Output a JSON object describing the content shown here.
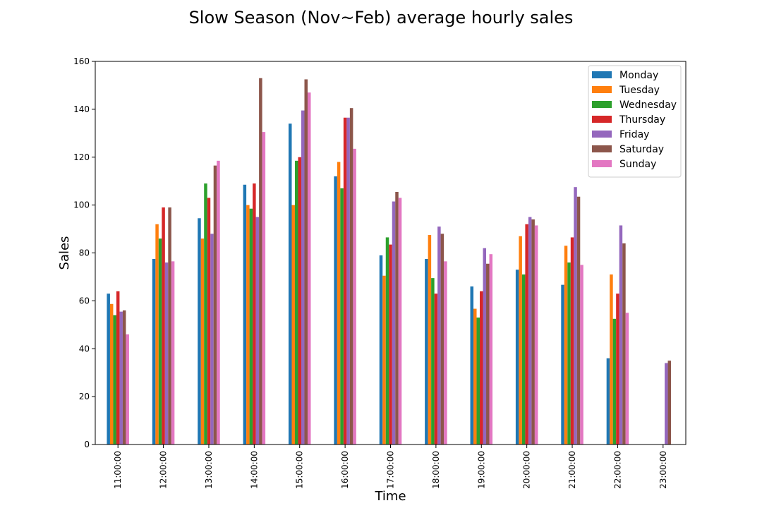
{
  "chart_data": {
    "type": "bar",
    "title": "Slow Season (Nov~Feb) average hourly sales",
    "xlabel": "Time",
    "ylabel": "Sales",
    "ylim": [
      0,
      160
    ],
    "yticks": [
      0,
      20,
      40,
      60,
      80,
      100,
      120,
      140,
      160
    ],
    "grid": false,
    "legend_position": "top-right",
    "categories": [
      "11:00:00",
      "12:00:00",
      "13:00:00",
      "14:00:00",
      "15:00:00",
      "16:00:00",
      "17:00:00",
      "18:00:00",
      "19:00:00",
      "20:00:00",
      "21:00:00",
      "22:00:00",
      "23:00:00"
    ],
    "series": [
      {
        "name": "Monday",
        "color": "#1f77b4",
        "values": [
          63,
          77.5,
          94.5,
          108.5,
          134,
          112,
          79,
          77.5,
          66,
          73,
          66.7,
          36,
          0
        ]
      },
      {
        "name": "Tuesday",
        "color": "#ff7f0e",
        "values": [
          58.7,
          92,
          86,
          100,
          100,
          118,
          70.5,
          87.5,
          56.7,
          87,
          83,
          71,
          0
        ]
      },
      {
        "name": "Wednesday",
        "color": "#2ca02c",
        "values": [
          54,
          86,
          109,
          98.5,
          118.5,
          107,
          86.5,
          69.5,
          53,
          71,
          76,
          52.5,
          0
        ]
      },
      {
        "name": "Thursday",
        "color": "#d62728",
        "values": [
          64,
          99,
          103,
          109,
          120,
          136.5,
          83.5,
          63,
          64,
          92,
          86.5,
          63,
          0
        ]
      },
      {
        "name": "Friday",
        "color": "#9467bd",
        "values": [
          55.5,
          76,
          88,
          95,
          139.5,
          136.5,
          101.5,
          91,
          82,
          95,
          107.5,
          91.5,
          34
        ]
      },
      {
        "name": "Saturday",
        "color": "#8c564b",
        "values": [
          56,
          99,
          116.5,
          153,
          152.5,
          140.5,
          105.5,
          88,
          75.5,
          94,
          103.5,
          84,
          35
        ]
      },
      {
        "name": "Sunday",
        "color": "#e377c2",
        "values": [
          46,
          76.5,
          118.5,
          130.5,
          147,
          123.5,
          103,
          76.5,
          79.5,
          91.5,
          75,
          55,
          0
        ]
      }
    ]
  }
}
